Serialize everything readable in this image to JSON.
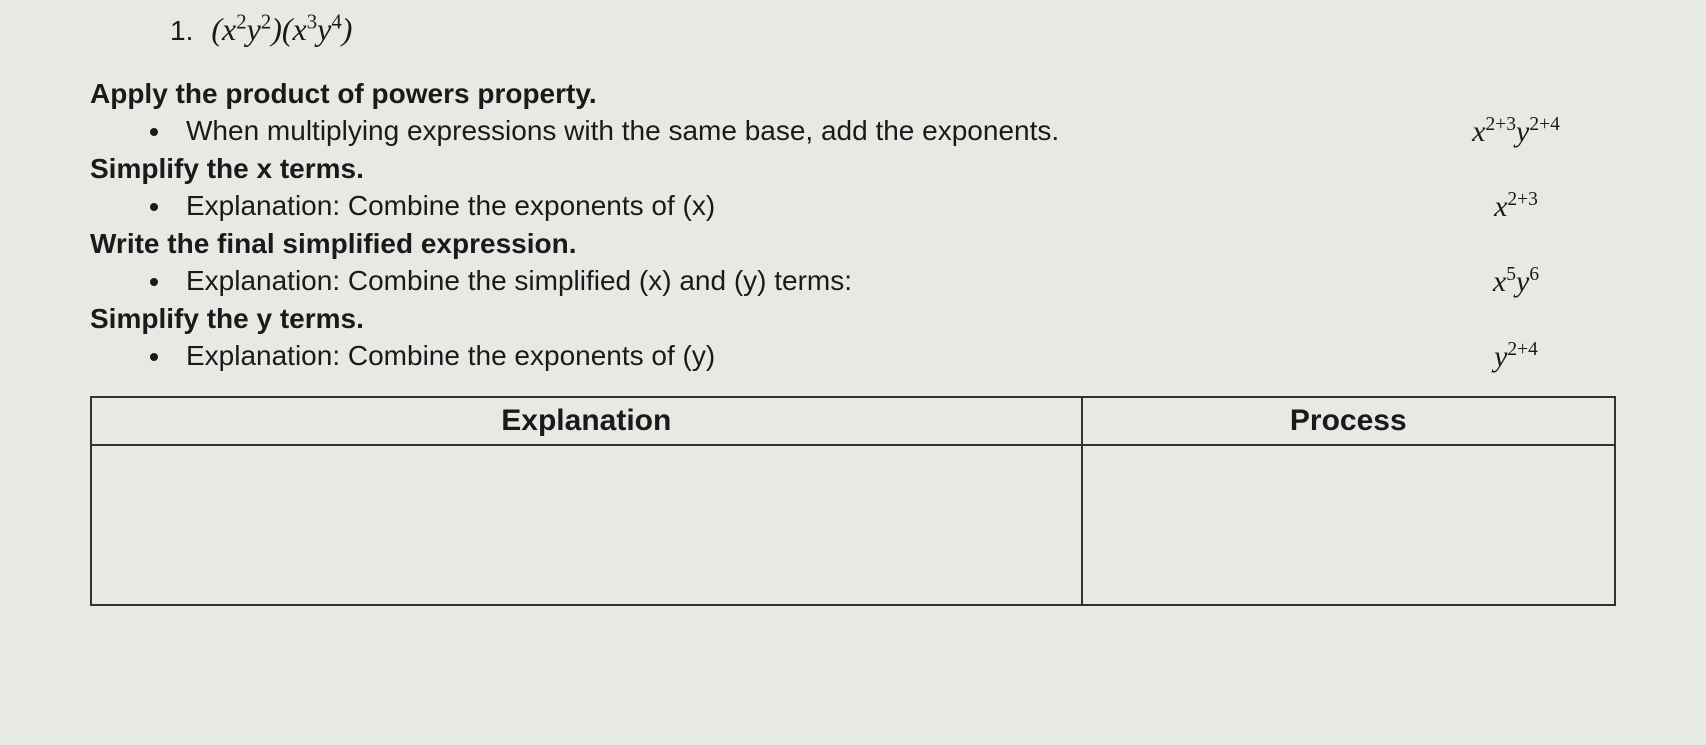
{
  "problem": {
    "number": "1.",
    "expression_html": "(<i>x</i><sup>2</sup><i>y</i><sup>2</sup>)(<i>x</i><sup>3</sup><i>y</i><sup>4</sup>)"
  },
  "steps": [
    {
      "title": "Apply the product of powers property.",
      "bullet": "When multiplying expressions with the same base, add the exponents.",
      "process_html": "<i>x</i><sup>2+3</sup><i>y</i><sup>2+4</sup>"
    },
    {
      "title": "Simplify the x terms.",
      "bullet": "Explanation: Combine the exponents of (x)",
      "process_html": "<i>x</i><sup>2+3</sup>"
    },
    {
      "title": "Write the final simplified expression.",
      "bullet": "Explanation: Combine the simplified (x) and (y) terms:",
      "process_html": "<i>x</i><sup>5</sup><i>y</i><sup>6</sup>"
    },
    {
      "title": "Simplify the y terms.",
      "bullet": "Explanation: Combine the exponents of (y)",
      "process_html": "<i>y</i><sup>2+4</sup>"
    }
  ],
  "table": {
    "headers": {
      "explanation": "Explanation",
      "process": "Process"
    },
    "body": {
      "explanation": "",
      "process": ""
    }
  }
}
